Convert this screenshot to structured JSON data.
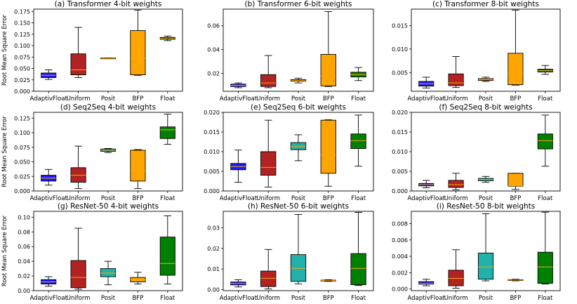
{
  "figure": {
    "ylabel": "Root Mean Square Error"
  },
  "chart_data": [
    {
      "type": "box",
      "title": "(a) Transformer 4-bit weights",
      "categories": [
        "AdaptivFloat",
        "Uniform",
        "Posit",
        "BFP",
        "Float"
      ],
      "colors": [
        "#1a1aff",
        "#b22222",
        "#ff8c00",
        "#ffa500",
        "#008000"
      ],
      "ylim": [
        0,
        0.18
      ],
      "yticks": [
        0.0,
        0.025,
        0.05,
        0.075,
        0.1,
        0.125,
        0.15,
        0.175
      ],
      "ytick_labels": [
        "0.000",
        "0.025",
        "0.050",
        "0.075",
        "0.100",
        "0.125",
        "0.150",
        "0.175"
      ],
      "boxes": [
        {
          "whislo": 0.026,
          "q1": 0.03,
          "med": 0.035,
          "q3": 0.04,
          "whishi": 0.047
        },
        {
          "whislo": 0.03,
          "q1": 0.036,
          "med": 0.047,
          "q3": 0.082,
          "whishi": 0.14
        },
        {
          "whislo": 0.072,
          "q1": 0.072,
          "med": 0.072,
          "q3": 0.073,
          "whishi": 0.073
        },
        {
          "whislo": 0.035,
          "q1": 0.036,
          "med": 0.072,
          "q3": 0.133,
          "whishi": 0.178
        },
        {
          "whislo": 0.111,
          "q1": 0.114,
          "med": 0.116,
          "q3": 0.118,
          "whishi": 0.121
        }
      ]
    },
    {
      "type": "box",
      "title": "(b) Transformer 6-bit weights",
      "categories": [
        "AdaptivFloat",
        "Uniform",
        "Posit",
        "BFP",
        "Float"
      ],
      "colors": [
        "#1a1aff",
        "#b22222",
        "#ff8c00",
        "#ffa500",
        "#008000"
      ],
      "ylim": [
        0.005,
        0.074
      ],
      "yticks": [
        0.02,
        0.04,
        0.06
      ],
      "ytick_labels": [
        "0.02",
        "0.04",
        "0.06"
      ],
      "boxes": [
        {
          "whislo": 0.008,
          "q1": 0.009,
          "med": 0.01,
          "q3": 0.011,
          "whishi": 0.012
        },
        {
          "whislo": 0.008,
          "q1": 0.009,
          "med": 0.012,
          "q3": 0.019,
          "whishi": 0.035
        },
        {
          "whislo": 0.012,
          "q1": 0.0135,
          "med": 0.014,
          "q3": 0.0148,
          "whishi": 0.016
        },
        {
          "whislo": 0.009,
          "q1": 0.0095,
          "med": 0.018,
          "q3": 0.036,
          "whishi": 0.072
        },
        {
          "whislo": 0.014,
          "q1": 0.017,
          "med": 0.019,
          "q3": 0.021,
          "whishi": 0.025
        }
      ]
    },
    {
      "type": "box",
      "title": "(c) Transformer 8-bit weights",
      "categories": [
        "AdaptivFloat",
        "Uniform",
        "Posit",
        "BFP",
        "Float"
      ],
      "colors": [
        "#1a1aff",
        "#b22222",
        "#ff8c00",
        "#ffa500",
        "#008000"
      ],
      "ylim": [
        0.001,
        0.0185
      ],
      "yticks": [
        0.005,
        0.01,
        0.015
      ],
      "ytick_labels": [
        "0.005",
        "0.010",
        "0.015"
      ],
      "boxes": [
        {
          "whislo": 0.0017,
          "q1": 0.0021,
          "med": 0.0026,
          "q3": 0.0031,
          "whishi": 0.004
        },
        {
          "whislo": 0.0018,
          "q1": 0.0022,
          "med": 0.0028,
          "q3": 0.0047,
          "whishi": 0.0084
        },
        {
          "whislo": 0.0031,
          "q1": 0.0033,
          "med": 0.0035,
          "q3": 0.0037,
          "whishi": 0.004
        },
        {
          "whislo": 0.0023,
          "q1": 0.0024,
          "med": 0.0047,
          "q3": 0.0091,
          "whishi": 0.0183
        },
        {
          "whislo": 0.0046,
          "q1": 0.0051,
          "med": 0.0054,
          "q3": 0.0057,
          "whishi": 0.0065
        }
      ]
    },
    {
      "type": "box",
      "title": "(d) Seq2Seq 4-bit weights",
      "categories": [
        "AdaptivFloat",
        "Uniform",
        "Posit",
        "BFP",
        "Float"
      ],
      "colors": [
        "#1a1aff",
        "#b22222",
        "#20b2aa",
        "#ffa500",
        "#008000"
      ],
      "ylim": [
        0,
        0.135
      ],
      "yticks": [
        0.0,
        0.025,
        0.05,
        0.075,
        0.1,
        0.125
      ],
      "ytick_labels": [
        "0.000",
        "0.025",
        "0.050",
        "0.075",
        "0.100",
        "0.125"
      ],
      "boxes": [
        {
          "whislo": 0.01,
          "q1": 0.017,
          "med": 0.022,
          "q3": 0.027,
          "whishi": 0.037
        },
        {
          "whislo": 0.004,
          "q1": 0.015,
          "med": 0.027,
          "q3": 0.04,
          "whishi": 0.077
        },
        {
          "whislo": 0.066,
          "q1": 0.068,
          "med": 0.07,
          "q3": 0.072,
          "whishi": 0.073
        },
        {
          "whislo": 0.004,
          "q1": 0.017,
          "med": 0.035,
          "q3": 0.07,
          "whishi": 0.071
        },
        {
          "whislo": 0.08,
          "q1": 0.09,
          "med": 0.105,
          "q3": 0.11,
          "whishi": 0.132
        }
      ]
    },
    {
      "type": "box",
      "title": "(e) Seq2Seq 6-bit weights",
      "categories": [
        "AdaptivFloat",
        "Uniform",
        "Posit",
        "BFP",
        "Float"
      ],
      "colors": [
        "#1a1aff",
        "#b22222",
        "#20b2aa",
        "#ffa500",
        "#008000"
      ],
      "ylim": [
        0,
        0.02
      ],
      "yticks": [
        0.0,
        0.005,
        0.01,
        0.015,
        0.02
      ],
      "ytick_labels": [
        "0.000",
        "0.005",
        "0.010",
        "0.015",
        "0.020"
      ],
      "boxes": [
        {
          "whislo": 0.0022,
          "q1": 0.0054,
          "med": 0.0062,
          "q3": 0.007,
          "whishi": 0.0104
        },
        {
          "whislo": 0.001,
          "q1": 0.004,
          "med": 0.006,
          "q3": 0.01,
          "whishi": 0.018
        },
        {
          "whislo": 0.0077,
          "q1": 0.0105,
          "med": 0.0113,
          "q3": 0.0123,
          "whishi": 0.0143
        },
        {
          "whislo": 0.0012,
          "q1": 0.0045,
          "med": 0.0092,
          "q3": 0.018,
          "whishi": 0.0181
        },
        {
          "whislo": 0.0063,
          "q1": 0.0108,
          "med": 0.0128,
          "q3": 0.0145,
          "whishi": 0.0193
        }
      ]
    },
    {
      "type": "box",
      "title": "(f) Seq2Seq 8-bit weights",
      "categories": [
        "AdaptivFloat",
        "Uniform",
        "Posit",
        "BFP",
        "Float"
      ],
      "colors": [
        "#1a1aff",
        "#b22222",
        "#20b2aa",
        "#ffa500",
        "#008000"
      ],
      "ylim": [
        0,
        0.02
      ],
      "yticks": [
        0.0,
        0.005,
        0.01,
        0.015,
        0.02
      ],
      "ytick_labels": [
        "0.000",
        "0.005",
        "0.010",
        "0.015",
        "0.020"
      ],
      "boxes": [
        {
          "whislo": 0.0008,
          "q1": 0.0013,
          "med": 0.0016,
          "q3": 0.0019,
          "whishi": 0.0027
        },
        {
          "whislo": 0.0003,
          "q1": 0.0009,
          "med": 0.0016,
          "q3": 0.0027,
          "whishi": 0.0045
        },
        {
          "whislo": 0.0022,
          "q1": 0.0026,
          "med": 0.0029,
          "q3": 0.0032,
          "whishi": 0.0037
        },
        {
          "whislo": 0.0004,
          "q1": 0.0012,
          "med": 0.0013,
          "q3": 0.0045,
          "whishi": 0.0045
        },
        {
          "whislo": 0.0063,
          "q1": 0.0107,
          "med": 0.0128,
          "q3": 0.0145,
          "whishi": 0.0193
        }
      ]
    },
    {
      "type": "box",
      "title": "(g) ResNet-50 4-bit weights",
      "categories": [
        "AdaptivFloat",
        "Uniform",
        "Posit",
        "BFP",
        "Float"
      ],
      "colors": [
        "#1a1aff",
        "#b22222",
        "#20b2aa",
        "#ffa500",
        "#008000"
      ],
      "ylim": [
        0,
        0.108
      ],
      "yticks": [
        0.0,
        0.02,
        0.04,
        0.06,
        0.08,
        0.1
      ],
      "ytick_labels": [
        "0.00",
        "0.02",
        "0.04",
        "0.06",
        "0.08",
        "0.10"
      ],
      "boxes": [
        {
          "whislo": 0.006,
          "q1": 0.009,
          "med": 0.012,
          "q3": 0.015,
          "whishi": 0.019
        },
        {
          "whislo": 0.002,
          "q1": 0.004,
          "med": 0.018,
          "q3": 0.041,
          "whishi": 0.085
        },
        {
          "whislo": 0.008,
          "q1": 0.019,
          "med": 0.024,
          "q3": 0.03,
          "whishi": 0.04
        },
        {
          "whislo": 0.009,
          "q1": 0.012,
          "med": 0.015,
          "q3": 0.018,
          "whishi": 0.025
        },
        {
          "whislo": 0.009,
          "q1": 0.021,
          "med": 0.037,
          "q3": 0.073,
          "whishi": 0.102
        }
      ]
    },
    {
      "type": "box",
      "title": "(h) ResNet-50 6-bit weights",
      "categories": [
        "AdaptivFloat",
        "Uniform",
        "Posit",
        "BFP",
        "Float"
      ],
      "colors": [
        "#1a1aff",
        "#b22222",
        "#20b2aa",
        "#ffa500",
        "#008000"
      ],
      "ylim": [
        -0.0005,
        0.038
      ],
      "yticks": [
        0.0,
        0.01,
        0.02,
        0.03
      ],
      "ytick_labels": [
        "0.00",
        "0.01",
        "0.02",
        "0.03"
      ],
      "boxes": [
        {
          "whislo": 0.0013,
          "q1": 0.0023,
          "med": 0.003,
          "q3": 0.0037,
          "whishi": 0.0048
        },
        {
          "whislo": 0.0003,
          "q1": 0.0015,
          "med": 0.0055,
          "q3": 0.009,
          "whishi": 0.0195
        },
        {
          "whislo": 0.0028,
          "q1": 0.004,
          "med": 0.0103,
          "q3": 0.017,
          "whishi": 0.0365
        },
        {
          "whislo": 0.004,
          "q1": 0.0042,
          "med": 0.0044,
          "q3": 0.0046,
          "whishi": 0.0048
        },
        {
          "whislo": 0.002,
          "q1": 0.0024,
          "med": 0.0103,
          "q3": 0.0175,
          "whishi": 0.0375
        }
      ]
    },
    {
      "type": "box",
      "title": "(i) ResNet-50 8-bit weights",
      "categories": [
        "AdaptivFloat",
        "Uniform",
        "Posit",
        "BFP",
        "Float"
      ],
      "colors": [
        "#1a1aff",
        "#b22222",
        "#20b2aa",
        "#ffa500",
        "#008000"
      ],
      "ylim": [
        -0.0002,
        0.0095
      ],
      "yticks": [
        0.0,
        0.002,
        0.004,
        0.006,
        0.008
      ],
      "ytick_labels": [
        "0.000",
        "0.002",
        "0.004",
        "0.006",
        "0.008"
      ],
      "boxes": [
        {
          "whislo": 0.0004,
          "q1": 0.0006,
          "med": 0.0007,
          "q3": 0.0009,
          "whishi": 0.0012
        },
        {
          "whislo": 0.0001,
          "q1": 0.0004,
          "med": 0.0013,
          "q3": 0.0023,
          "whishi": 0.0048
        },
        {
          "whislo": 0.001,
          "q1": 0.0012,
          "med": 0.0027,
          "q3": 0.0044,
          "whishi": 0.0092
        },
        {
          "whislo": 0.001,
          "q1": 0.00105,
          "med": 0.0011,
          "q3": 0.00115,
          "whishi": 0.0012
        },
        {
          "whislo": 0.0006,
          "q1": 0.0007,
          "med": 0.0027,
          "q3": 0.0045,
          "whishi": 0.0094
        }
      ]
    }
  ]
}
